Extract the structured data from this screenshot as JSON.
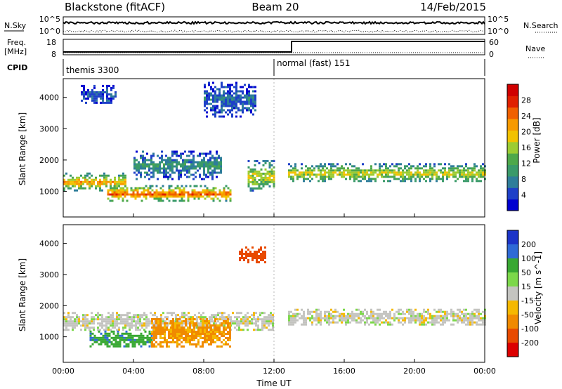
{
  "header": {
    "title_left": "Blackstone (fitACF)",
    "title_center": "Beam 20",
    "title_right": "14/Feb/2015"
  },
  "params": {
    "nsky_label": "N.Sky",
    "nsky_tick_hi": "10^5",
    "nsky_tick_lo": "10^0",
    "nsearch_label": "N.Search",
    "nsearch_tick_hi": "10^5",
    "nsearch_tick_lo": "10^0",
    "freq_label_1": "Freq.",
    "freq_label_2": "[MHz]",
    "freq_tick_hi": "18",
    "freq_tick_lo": "8",
    "nave_label": "Nave",
    "nave_tick_hi": "60",
    "nave_tick_lo": "0",
    "cpid_label": "CPID",
    "cpid_1": "themis 3300",
    "cpid_2": "normal (fast) 151"
  },
  "chart_data": [
    {
      "type": "heatmap",
      "panel": "power",
      "xlabel": "",
      "ylabel": "Slant Range [km]",
      "yticks": [
        1000,
        2000,
        3000,
        4000
      ],
      "ylim": [
        180,
        4600
      ],
      "colorbar": {
        "label": "Power [dB]",
        "ticks": [
          4,
          8,
          12,
          16,
          20,
          24,
          28
        ],
        "range": [
          0,
          32
        ],
        "colors": [
          "#0000d0",
          "#1e40c8",
          "#2e7d9a",
          "#3a9a6a",
          "#4ea84a",
          "#9ccc32",
          "#f2c200",
          "#f79a00",
          "#f06000",
          "#e02000",
          "#d00000"
        ]
      },
      "regions": [
        {
          "t": [
            0.0,
            3.5
          ],
          "r": [
            1050,
            1600
          ],
          "p": 22
        },
        {
          "t": [
            2.5,
            9.5
          ],
          "r": [
            700,
            1200
          ],
          "p": 26
        },
        {
          "t": [
            4.0,
            9.0
          ],
          "r": [
            1400,
            2300
          ],
          "p": 10
        },
        {
          "t": [
            10.5,
            12.0
          ],
          "r": [
            1000,
            2000
          ],
          "p": 18
        },
        {
          "t": [
            12.8,
            24.0
          ],
          "r": [
            1300,
            1900
          ],
          "p": 18
        },
        {
          "t": [
            1.0,
            3.0
          ],
          "r": [
            3800,
            4400
          ],
          "p": 6
        },
        {
          "t": [
            8.0,
            11.0
          ],
          "r": [
            3400,
            4500
          ],
          "p": 7
        }
      ]
    },
    {
      "type": "heatmap",
      "panel": "velocity",
      "xlabel": "Time UT",
      "ylabel": "Slant Range [km]",
      "xticks": [
        "00:00",
        "04:00",
        "08:00",
        "12:00",
        "16:00",
        "20:00",
        "00:00"
      ],
      "xlim": [
        0,
        24
      ],
      "yticks": [
        1000,
        2000,
        3000,
        4000
      ],
      "ylim": [
        180,
        4600
      ],
      "colorbar": {
        "label": "Velocity [m s^-1]",
        "ticks": [
          "200",
          "100",
          "50",
          "15",
          "-15",
          "-50",
          "-100",
          "-200"
        ],
        "colors": [
          "#1c34c8",
          "#2e6ad6",
          "#38a832",
          "#7cd84a",
          "#c4c4c0",
          "#f5b800",
          "#f08a00",
          "#e84a00",
          "#dc0000"
        ]
      },
      "regions": [
        {
          "t": [
            0.0,
            12.0
          ],
          "r": [
            1200,
            1800
          ],
          "v": 0
        },
        {
          "t": [
            1.5,
            5.0
          ],
          "r": [
            700,
            1200
          ],
          "v": 60
        },
        {
          "t": [
            5.0,
            9.5
          ],
          "r": [
            700,
            1600
          ],
          "v": -40
        },
        {
          "t": [
            10.0,
            11.5
          ],
          "r": [
            3400,
            3900
          ],
          "v": -120
        },
        {
          "t": [
            12.8,
            24.0
          ],
          "r": [
            1400,
            1900
          ],
          "v": 0
        }
      ]
    }
  ]
}
